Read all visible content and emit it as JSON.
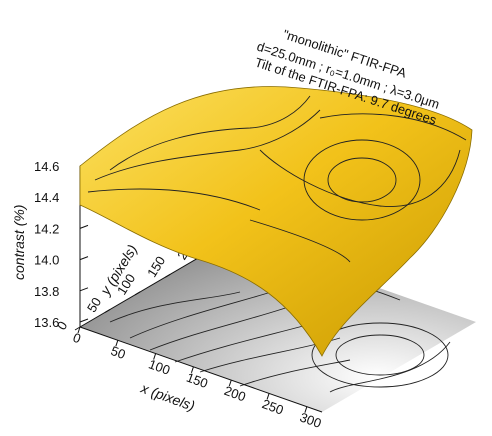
{
  "chart_data": {
    "type": "surface",
    "annotations": [
      "\"monolithic\" FTIR-FPA",
      "d=25.0mm ; r₀=1.0mm ; λ=3.0μm",
      "Tilt of the FTIR-FPA:   9.7 degrees"
    ],
    "xlabel": "x (pixels)",
    "ylabel": "y (pixels)",
    "zlabel": "contrast (%)",
    "x_ticks": [
      "0",
      "50",
      "100",
      "150",
      "200",
      "250",
      "300"
    ],
    "y_ticks": [
      "0",
      "50",
      "100",
      "150",
      "200"
    ],
    "z_ticks": [
      "13.6",
      "13.8",
      "14.0",
      "14.2",
      "14.4",
      "14.6"
    ],
    "xlim": [
      0,
      320
    ],
    "ylim": [
      0,
      256
    ],
    "zlim": [
      13.5,
      14.6
    ],
    "surface_points": [
      {
        "x": 0,
        "y": 256,
        "z": 14.6
      },
      {
        "x": 0,
        "y": 0,
        "z": 14.5
      },
      {
        "x": 320,
        "y": 256,
        "z": 14.35
      },
      {
        "x": 230,
        "y": 120,
        "z": 14.45
      },
      {
        "x": 320,
        "y": 0,
        "z": 13.5
      }
    ],
    "surface_color": "#f2c21a",
    "contour_color": "#333333",
    "projection_color": "#e6e6e6"
  }
}
